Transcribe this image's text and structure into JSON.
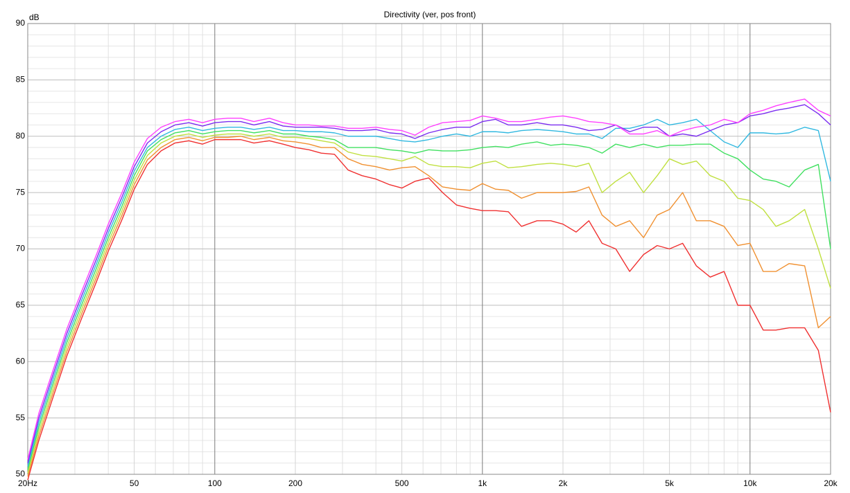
{
  "chart_data": {
    "type": "line",
    "title": "Directivity (ver, pos front)",
    "y_label": "dB",
    "x_scale": "log",
    "x": [
      20,
      22,
      25,
      28,
      32,
      36,
      40,
      45,
      50,
      56,
      63,
      71,
      80,
      90,
      100,
      112,
      125,
      140,
      160,
      180,
      200,
      225,
      250,
      280,
      315,
      355,
      400,
      450,
      500,
      560,
      630,
      710,
      800,
      900,
      1000,
      1120,
      1250,
      1400,
      1600,
      1800,
      2000,
      2240,
      2500,
      2800,
      3150,
      3550,
      4000,
      4500,
      5000,
      5600,
      6300,
      7100,
      8000,
      9000,
      10000,
      11200,
      12500,
      14000,
      16000,
      18000,
      20000
    ],
    "series": [
      {
        "color": "#ff40ff",
        "values": [
          51.3,
          55.4,
          59.4,
          62.9,
          66.4,
          69.4,
          72.2,
          75,
          77.7,
          79.8,
          80.8,
          81.3,
          81.5,
          81.2,
          81.5,
          81.6,
          81.6,
          81.3,
          81.6,
          81.2,
          81,
          81,
          80.9,
          80.9,
          80.7,
          80.7,
          80.8,
          80.6,
          80.5,
          80.1,
          80.8,
          81.2,
          81.3,
          81.4,
          81.8,
          81.6,
          81.3,
          81.3,
          81.5,
          81.7,
          81.8,
          81.6,
          81.3,
          81.2,
          81,
          80.2,
          80.2,
          80.5,
          80,
          80.5,
          80.8,
          81,
          81.5,
          81.2,
          82,
          82.3,
          82.7,
          83,
          83.3,
          82.3,
          81.8
        ]
      },
      {
        "color": "#7b2cf0",
        "values": [
          51,
          55,
          59,
          62.5,
          66,
          69,
          71.8,
          74.6,
          77.3,
          79.4,
          80.4,
          81,
          81.2,
          80.9,
          81.2,
          81.3,
          81.3,
          81,
          81.3,
          80.9,
          80.8,
          80.8,
          80.8,
          80.7,
          80.5,
          80.5,
          80.6,
          80.3,
          80.2,
          79.8,
          80.3,
          80.6,
          80.8,
          80.8,
          81.3,
          81.5,
          81,
          81,
          81.2,
          81,
          81,
          80.8,
          80.5,
          80.6,
          81,
          80.4,
          80.8,
          80.8,
          80,
          80.2,
          80,
          80.5,
          81,
          81.2,
          81.8,
          82,
          82.3,
          82.5,
          82.8,
          82,
          81
        ]
      },
      {
        "color": "#30b8e0",
        "values": [
          50.7,
          54.6,
          58.6,
          62.1,
          65.6,
          68.6,
          71.4,
          74.2,
          76.9,
          79,
          80,
          80.6,
          80.8,
          80.5,
          80.7,
          80.8,
          80.8,
          80.6,
          80.8,
          80.5,
          80.5,
          80.4,
          80.4,
          80.3,
          80,
          80,
          80,
          79.8,
          79.6,
          79.5,
          79.7,
          80,
          80.2,
          80,
          80.4,
          80.4,
          80.3,
          80.5,
          80.6,
          80.5,
          80.4,
          80.2,
          80.2,
          79.8,
          80.7,
          80.7,
          81,
          81.5,
          81,
          81.2,
          81.5,
          80.5,
          79.5,
          79,
          80.3,
          80.3,
          80.2,
          80.3,
          80.8,
          80.5,
          76
        ]
      },
      {
        "color": "#40e060",
        "values": [
          50.4,
          54.2,
          58.2,
          61.7,
          65.2,
          68.2,
          71,
          73.8,
          76.5,
          78.7,
          79.7,
          80.3,
          80.5,
          80.2,
          80.4,
          80.5,
          80.5,
          80.3,
          80.5,
          80.2,
          80.2,
          80,
          79.9,
          79.7,
          79,
          79,
          79,
          78.8,
          78.7,
          78.5,
          78.8,
          78.7,
          78.7,
          78.8,
          79,
          79.1,
          79,
          79.3,
          79.5,
          79.2,
          79.3,
          79.2,
          79,
          78.5,
          79.3,
          79,
          79.3,
          79,
          79.2,
          79.2,
          79.3,
          79.3,
          78.5,
          78,
          77,
          76.2,
          76,
          75.5,
          77,
          77.5,
          70
        ]
      },
      {
        "color": "#c0e040",
        "values": [
          50.1,
          53.8,
          57.8,
          61.3,
          64.8,
          67.8,
          70.6,
          73.4,
          76.1,
          78.3,
          79.4,
          80,
          80.2,
          79.9,
          80.1,
          80.2,
          80.2,
          80,
          80.2,
          79.9,
          79.9,
          79.8,
          79.6,
          79.4,
          78.6,
          78.3,
          78.2,
          78,
          77.8,
          78.2,
          77.5,
          77.3,
          77.3,
          77.2,
          77.6,
          77.8,
          77.2,
          77.3,
          77.5,
          77.6,
          77.5,
          77.3,
          77.6,
          75,
          76,
          76.8,
          75,
          76.5,
          78,
          77.5,
          77.8,
          76.5,
          76,
          74.5,
          74.3,
          73.5,
          72,
          72.5,
          73.5,
          70,
          66.5
        ]
      },
      {
        "color": "#f09030",
        "values": [
          49.8,
          53.4,
          57.4,
          60.9,
          64.4,
          67.4,
          70.2,
          73,
          75.7,
          77.9,
          79,
          79.7,
          79.9,
          79.6,
          79.9,
          79.9,
          80,
          79.7,
          79.9,
          79.6,
          79.5,
          79.3,
          79,
          79,
          78,
          77.5,
          77.3,
          77,
          77.2,
          77.3,
          76.5,
          75.5,
          75.3,
          75.2,
          75.8,
          75.3,
          75.2,
          74.5,
          75,
          75,
          75,
          75.1,
          75.5,
          73,
          72,
          72.5,
          71,
          73,
          73.5,
          75,
          72.5,
          72.5,
          72,
          70.3,
          70.5,
          68,
          68,
          68.7,
          68.5,
          63,
          64
        ]
      },
      {
        "color": "#f03030",
        "values": [
          49.5,
          53,
          57,
          60.5,
          64,
          67,
          69.8,
          72.6,
          75.3,
          77.5,
          78.7,
          79.4,
          79.6,
          79.3,
          79.7,
          79.7,
          79.7,
          79.4,
          79.6,
          79.3,
          79,
          78.8,
          78.5,
          78.4,
          77,
          76.5,
          76.2,
          75.7,
          75.4,
          76,
          76.3,
          75,
          73.9,
          73.6,
          73.4,
          73.4,
          73.3,
          72,
          72.5,
          72.5,
          72.2,
          71.5,
          72.5,
          70.5,
          70,
          68,
          69.5,
          70.3,
          70,
          70.5,
          68.5,
          67.5,
          68,
          65,
          65,
          62.8,
          62.8,
          63,
          63,
          61,
          55.5
        ]
      }
    ],
    "xlim": [
      20,
      20000
    ],
    "xticks": [
      {
        "value": 20,
        "label": "20Hz"
      },
      50,
      100,
      200,
      500,
      {
        "value": 1000,
        "label": "1k"
      },
      {
        "value": 2000,
        "label": "2k"
      },
      {
        "value": 5000,
        "label": "5k"
      },
      {
        "value": 10000,
        "label": "10k"
      },
      {
        "value": 20000,
        "label": "20k"
      }
    ],
    "xticks_minor": [
      30,
      40,
      60,
      70,
      80,
      90,
      300,
      400,
      600,
      700,
      800,
      900,
      3000,
      4000,
      6000,
      7000,
      8000,
      9000
    ],
    "ylim": [
      50,
      90
    ],
    "yticks": [
      50,
      55,
      60,
      65,
      70,
      75,
      80,
      85,
      90
    ],
    "yticks_minor": [
      51,
      52,
      53,
      54,
      56,
      57,
      58,
      59,
      61,
      62,
      63,
      64,
      66,
      67,
      68,
      69,
      71,
      72,
      73,
      74,
      76,
      77,
      78,
      79,
      81,
      82,
      83,
      84,
      86,
      87,
      88,
      89
    ],
    "grid": true
  }
}
